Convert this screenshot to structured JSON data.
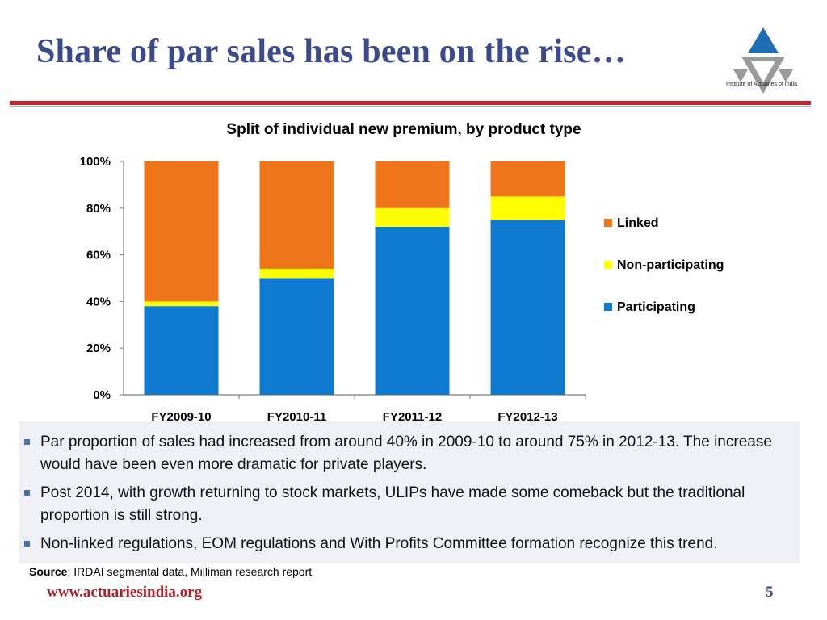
{
  "slide": {
    "title": "Share of par sales has been on the rise…",
    "logo_caption": "Institute of Actuaries of India",
    "footer_url": "www.actuariesindia.org",
    "page_number": "5"
  },
  "colors": {
    "participating": "#0f7bd0",
    "non_participating": "#ffff00",
    "linked": "#ee7519",
    "title": "#3b4a8c",
    "accent_red": "#c0272d"
  },
  "chart_data": {
    "type": "bar",
    "stacked": true,
    "title": "Split of individual new premium, by product type",
    "categories": [
      "FY2009-10",
      "FY2010-11",
      "FY2011-12",
      "FY2012-13"
    ],
    "series": [
      {
        "name": "Participating",
        "values": [
          38,
          50,
          72,
          75
        ]
      },
      {
        "name": "Non-participating",
        "values": [
          2,
          4,
          8,
          10
        ]
      },
      {
        "name": "Linked",
        "values": [
          60,
          46,
          20,
          15
        ]
      }
    ],
    "ylim": [
      0,
      100
    ],
    "yticks": [
      "0%",
      "20%",
      "40%",
      "60%",
      "80%",
      "100%"
    ],
    "ytick_values": [
      0,
      20,
      40,
      60,
      80,
      100
    ],
    "legend_order": [
      "Linked",
      "Non-participating",
      "Participating"
    ],
    "legend_position": "right",
    "grid": false
  },
  "bullets": [
    "Par proportion of sales had increased from around 40% in 2009-10 to around 75% in 2012-13.  The increase would have been even more dramatic for private players.",
    "Post 2014, with growth returning to stock markets, ULIPs have made some comeback but the traditional proportion is still strong.",
    "Non-linked regulations, EOM regulations and With Profits Committee formation recognize this trend."
  ],
  "source": {
    "label": "Source",
    "text": ": IRDAI segmental data, Milliman research report"
  }
}
